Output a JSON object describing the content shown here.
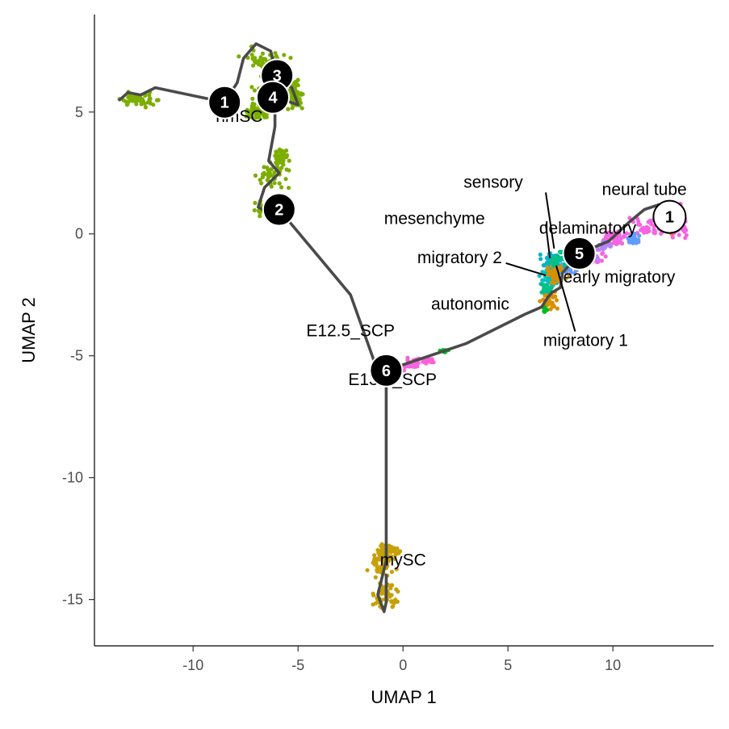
{
  "chart_data": {
    "type": "scatter",
    "xlabel": "UMAP 1",
    "ylabel": "UMAP 2",
    "xlim": [
      -14.7,
      14.8
    ],
    "ylim": [
      -16.9,
      9.0
    ],
    "x_ticks": [
      {
        "value": -10,
        "label": "-10"
      },
      {
        "value": -5,
        "label": "-5"
      },
      {
        "value": 0,
        "label": "0"
      },
      {
        "value": 5,
        "label": "5"
      },
      {
        "value": 10,
        "label": "10"
      }
    ],
    "y_ticks": [
      {
        "value": 5,
        "label": "5"
      },
      {
        "value": 0,
        "label": "0"
      },
      {
        "value": -5,
        "label": "-5"
      },
      {
        "value": -10,
        "label": "-10"
      },
      {
        "value": -15,
        "label": "-15"
      }
    ],
    "colors": {
      "nmSC": "#7cae00",
      "mySC": "#c7a008",
      "neural tube": "#f564e3",
      "delaminatory": "#b983ff",
      "early migratory": "#619cff",
      "migratory 1": "#00b4c8",
      "migratory 2": "#00bfc4",
      "mesenchyme": "#d89000",
      "sensory": "#00c08b",
      "autonomic": "#00b81f",
      "SCP": "#fb61d7",
      "trajectory": "#4a4a4a",
      "outlier": "#f8766d"
    },
    "clusters": [
      {
        "name": "nmSC",
        "label": "nmSC",
        "color": "#7cae00",
        "n": 260,
        "blobs": [
          [
            -6.5,
            7.0,
            1.0,
            0.6
          ],
          [
            -6.0,
            5.8,
            1.1,
            0.5
          ],
          [
            -5.2,
            5.7,
            0.5,
            0.5
          ],
          [
            -12.5,
            5.5,
            0.8,
            0.25
          ],
          [
            -7.0,
            5.0,
            0.6,
            0.3
          ]
        ]
      },
      {
        "name": "nmSC",
        "label": "",
        "color": "#7cae00",
        "n": 120,
        "blobs": [
          [
            -6.3,
            2.4,
            0.8,
            0.5
          ],
          [
            -6.5,
            1.0,
            0.8,
            0.35
          ],
          [
            -5.8,
            3.1,
            0.3,
            0.4
          ]
        ]
      },
      {
        "name": "mySC",
        "label": "mySC",
        "color": "#c7a008",
        "n": 170,
        "blobs": [
          [
            -1.0,
            -13.5,
            0.6,
            0.5
          ],
          [
            -0.8,
            -14.8,
            0.5,
            0.6
          ],
          [
            -0.7,
            -13.0,
            0.5,
            0.3
          ]
        ]
      },
      {
        "name": "neural tube",
        "label": "neural tube",
        "color": "#f564e3",
        "n": 200,
        "blobs": [
          [
            12.0,
            0.3,
            1.2,
            0.45
          ],
          [
            10.2,
            -0.2,
            0.8,
            0.3
          ],
          [
            9.0,
            -0.9,
            0.5,
            0.3
          ],
          [
            13.2,
            0.5,
            0.4,
            0.5
          ]
        ]
      },
      {
        "name": "delaminatory",
        "label": "delaminatory",
        "color": "#b983ff",
        "n": 60,
        "blobs": [
          [
            8.8,
            -1.0,
            0.5,
            0.3
          ],
          [
            9.6,
            -0.5,
            0.3,
            0.2
          ]
        ]
      },
      {
        "name": "early migratory",
        "label": "early migratory",
        "color": "#619cff",
        "n": 50,
        "blobs": [
          [
            8.0,
            -1.3,
            0.5,
            0.3
          ],
          [
            11.0,
            -0.2,
            0.3,
            0.2
          ]
        ]
      },
      {
        "name": "migratory 1",
        "label": "migratory 1",
        "color": "#00b4c8",
        "n": 60,
        "blobs": [
          [
            7.1,
            -1.1,
            0.45,
            0.3
          ]
        ]
      },
      {
        "name": "migratory 2",
        "label": "migratory 2",
        "color": "#00bfc4",
        "n": 60,
        "blobs": [
          [
            7.0,
            -1.8,
            0.4,
            0.35
          ]
        ]
      },
      {
        "name": "mesenchyme",
        "label": "mesenchyme",
        "color": "#d89000",
        "n": 80,
        "blobs": [
          [
            7.2,
            -1.6,
            0.5,
            0.5
          ],
          [
            7.0,
            -2.7,
            0.35,
            0.4
          ]
        ]
      },
      {
        "name": "sensory",
        "label": "sensory",
        "color": "#00c08b",
        "n": 50,
        "blobs": [
          [
            7.4,
            -1.0,
            0.4,
            0.3
          ],
          [
            6.8,
            -2.2,
            0.3,
            0.3
          ]
        ]
      },
      {
        "name": "autonomic",
        "label": "autonomic",
        "color": "#00b81f",
        "n": 20,
        "blobs": [
          [
            6.7,
            -3.1,
            0.15,
            0.15
          ],
          [
            2.0,
            -4.8,
            0.3,
            0.08
          ]
        ]
      },
      {
        "name": "E12.5_SCP",
        "label": "E12.5_SCP",
        "color": "#fb61d7",
        "n": 60,
        "blobs": [
          [
            1.0,
            -5.2,
            0.8,
            0.12
          ],
          [
            -0.5,
            -5.6,
            0.4,
            0.1
          ]
        ]
      },
      {
        "name": "E13.5_SCP",
        "label": "E13.5_SCP",
        "color": "#f564e3",
        "n": 20,
        "blobs": [
          [
            0.3,
            -5.4,
            0.5,
            0.1
          ]
        ]
      },
      {
        "name": "outlier",
        "label": "",
        "color": "#f8766d",
        "n": 2,
        "blobs": [
          [
            12.8,
            0.0,
            0.2,
            0.3
          ]
        ]
      }
    ],
    "trajectory": [
      [
        [
          -8.5,
          5.4
        ],
        [
          -11.8,
          6.0
        ],
        [
          -12.5,
          5.7
        ],
        [
          -13.1,
          5.8
        ],
        [
          -13.5,
          5.5
        ]
      ],
      [
        [
          -8.5,
          5.4
        ],
        [
          -7.9,
          6.2
        ],
        [
          -7.6,
          7.2
        ],
        [
          -7.0,
          7.8
        ],
        [
          -6.3,
          7.5
        ],
        [
          -6.0,
          6.4
        ]
      ],
      [
        [
          -6.0,
          6.4
        ],
        [
          -5.3,
          6.0
        ],
        [
          -5.0,
          5.3
        ],
        [
          -5.7,
          5.5
        ],
        [
          -6.1,
          5.6
        ]
      ],
      [
        [
          -6.1,
          5.6
        ],
        [
          -6.1,
          4.4
        ],
        [
          -6.4,
          3.0
        ],
        [
          -5.9,
          2.5
        ],
        [
          -6.6,
          1.9
        ],
        [
          -6.9,
          1.1
        ],
        [
          -6.3,
          0.8
        ],
        [
          -5.9,
          1.0
        ]
      ],
      [
        [
          -5.9,
          1.0
        ],
        [
          -2.5,
          -2.5
        ],
        [
          -1.3,
          -5.4
        ],
        [
          -0.8,
          -5.6
        ]
      ],
      [
        [
          -0.8,
          -5.6
        ],
        [
          -0.8,
          -10.0
        ],
        [
          -0.8,
          -13.4
        ],
        [
          -1.2,
          -14.8
        ],
        [
          -0.9,
          -15.5
        ],
        [
          -0.8,
          -15.1
        ],
        [
          -0.8,
          -14.0
        ]
      ],
      [
        [
          -0.8,
          -5.6
        ],
        [
          3.0,
          -4.5
        ],
        [
          5.8,
          -3.3
        ],
        [
          6.6,
          -3.0
        ],
        [
          6.9,
          -2.6
        ],
        [
          7.1,
          -2.4
        ],
        [
          7.5,
          -2.2
        ],
        [
          7.6,
          -1.6
        ],
        [
          8.4,
          -0.8
        ]
      ],
      [
        [
          8.4,
          -0.8
        ],
        [
          9.8,
          -0.3
        ],
        [
          10.8,
          0.5
        ],
        [
          11.5,
          1.0
        ],
        [
          12.2,
          1.2
        ],
        [
          12.8,
          0.7
        ]
      ]
    ],
    "nodes": [
      {
        "id": "1",
        "x": -8.5,
        "y": 5.4,
        "fill": "#000000",
        "text": "#ffffff"
      },
      {
        "id": "3",
        "x": -6.0,
        "y": 6.5,
        "fill": "#000000",
        "text": "#ffffff"
      },
      {
        "id": "4",
        "x": -6.2,
        "y": 5.6,
        "fill": "#000000",
        "text": "#ffffff"
      },
      {
        "id": "2",
        "x": -5.9,
        "y": 1.0,
        "fill": "#000000",
        "text": "#ffffff"
      },
      {
        "id": "6",
        "x": -0.8,
        "y": -5.6,
        "fill": "#000000",
        "text": "#ffffff"
      },
      {
        "id": "5",
        "x": 8.4,
        "y": -0.8,
        "fill": "#000000",
        "text": "#ffffff"
      },
      {
        "id": "1",
        "x": 12.7,
        "y": 0.7,
        "fill": "#ffffff",
        "text": "#000000"
      }
    ],
    "labels": [
      {
        "text": "nmSC",
        "x": -7.8,
        "y": 4.6,
        "anchor": "middle"
      },
      {
        "text": "mySC",
        "x": 0.0,
        "y": -13.6,
        "anchor": "middle"
      },
      {
        "text": "E12.5_SCP",
        "x": -2.5,
        "y": -4.2,
        "anchor": "middle"
      },
      {
        "text": "E13.5_SCP",
        "x": -0.5,
        "y": -6.2,
        "anchor": "middle"
      },
      {
        "text": "neural tube",
        "x": 11.5,
        "y": 1.6,
        "anchor": "middle"
      },
      {
        "text": "sensory",
        "x": 4.3,
        "y": 1.9,
        "anchor": "middle"
      },
      {
        "text": "mesenchyme",
        "x": 1.5,
        "y": 0.4,
        "anchor": "middle"
      },
      {
        "text": "delaminatory",
        "x": 8.8,
        "y": 0.0,
        "anchor": "middle"
      },
      {
        "text": "migratory 2",
        "x": 2.7,
        "y": -1.2,
        "anchor": "middle"
      },
      {
        "text": "early migratory",
        "x": 10.3,
        "y": -2.0,
        "anchor": "middle"
      },
      {
        "text": "autonomic",
        "x": 3.2,
        "y": -3.1,
        "anchor": "middle"
      },
      {
        "text": "migratory 1",
        "x": 8.7,
        "y": -4.6,
        "anchor": "middle"
      }
    ],
    "leaders": [
      {
        "x1": 6.8,
        "y1": 1.7,
        "x2": 7.2,
        "y2": -0.6
      },
      {
        "x1": 6.8,
        "y1": 0.4,
        "x2": 7.0,
        "y2": -1.0
      },
      {
        "x1": 4.9,
        "y1": -1.2,
        "x2": 6.8,
        "y2": -1.7
      },
      {
        "x1": 8.2,
        "y1": -4.0,
        "x2": 7.3,
        "y2": -1.3
      }
    ]
  }
}
